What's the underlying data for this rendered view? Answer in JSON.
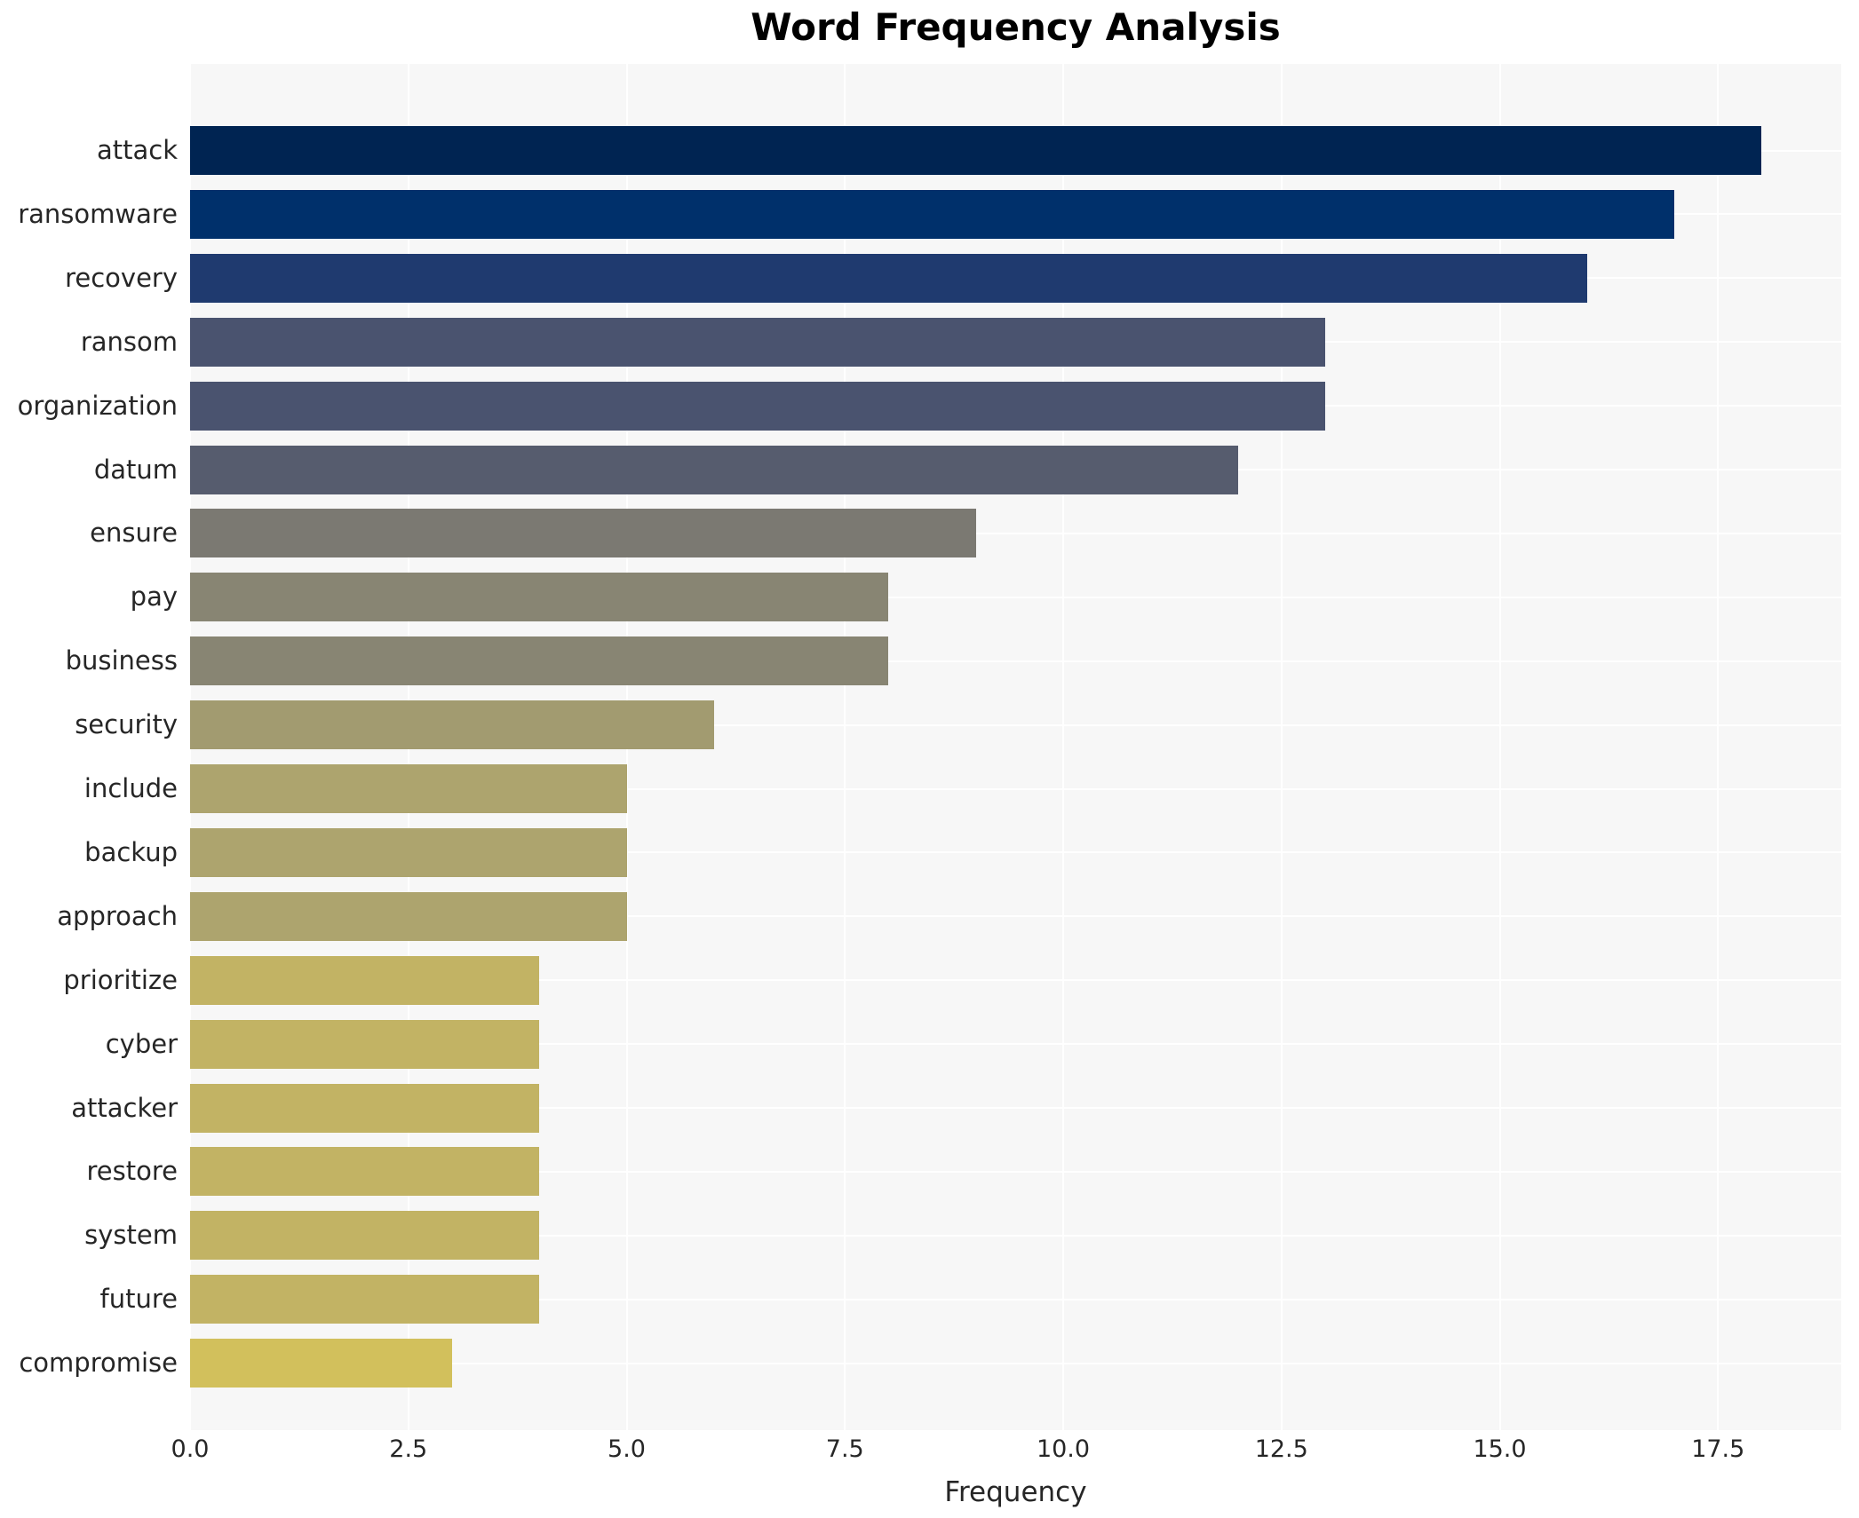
{
  "chart": {
    "title": "Word Frequency Analysis",
    "xlabel": "Frequency",
    "plot_bg": "#f7f7f7",
    "grid_color": "#ffffff",
    "text_color": "#262626"
  },
  "chart_data": {
    "type": "bar",
    "orientation": "horizontal",
    "title": "Word Frequency Analysis",
    "xlabel": "Frequency",
    "ylabel": "",
    "grid": true,
    "legend": false,
    "xlim": [
      0,
      18.9
    ],
    "x_ticks": [
      0.0,
      2.5,
      5.0,
      7.5,
      10.0,
      12.5,
      15.0,
      17.5
    ],
    "x_tick_labels": [
      "0.0",
      "2.5",
      "5.0",
      "7.5",
      "10.0",
      "12.5",
      "15.0",
      "17.5"
    ],
    "categories": [
      "attack",
      "ransomware",
      "recovery",
      "ransom",
      "organization",
      "datum",
      "ensure",
      "pay",
      "business",
      "security",
      "include",
      "backup",
      "approach",
      "prioritize",
      "cyber",
      "attacker",
      "restore",
      "system",
      "future",
      "compromise"
    ],
    "values": [
      18,
      17,
      16,
      13,
      13,
      12,
      9,
      8,
      8,
      6,
      5,
      5,
      5,
      4,
      4,
      4,
      4,
      4,
      4,
      3
    ],
    "bar_colors": [
      "#002452",
      "#00306b",
      "#1f3a6f",
      "#4a536f",
      "#4a536f",
      "#565c6e",
      "#7b7972",
      "#888573",
      "#888573",
      "#a29b70",
      "#ada46e",
      "#ada46e",
      "#ada46e",
      "#c2b364",
      "#c2b364",
      "#c2b364",
      "#c2b364",
      "#c2b364",
      "#c2b364",
      "#d2c05c"
    ]
  }
}
